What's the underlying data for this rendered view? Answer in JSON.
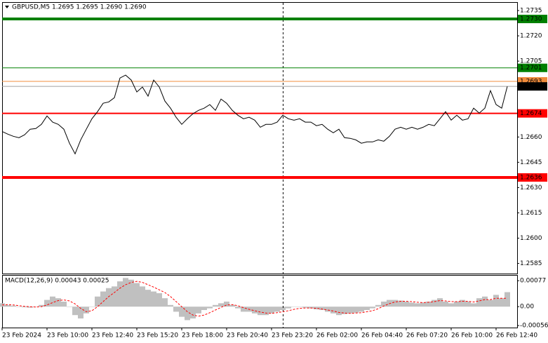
{
  "chart_data": [
    {
      "type": "line",
      "title": "GBPUSD,M5  1.2695 1.2695 1.2690 1.2690",
      "categories": [
        "23 Feb 2024",
        null,
        null,
        null,
        null,
        null,
        null,
        null,
        "23 Feb 10:00",
        null,
        null,
        null,
        null,
        null,
        null,
        null,
        "23 Feb 12:40",
        null,
        null,
        null,
        null,
        null,
        null,
        null,
        "23 Feb 15:20",
        null,
        null,
        null,
        null,
        null,
        null,
        null,
        "23 Feb 18:00",
        null,
        null,
        null,
        null,
        null,
        null,
        null,
        "23 Feb 20:40",
        null,
        null,
        null,
        null,
        null,
        null,
        null,
        "23 Feb 23:20",
        null,
        null,
        null,
        null,
        null,
        null,
        null,
        "26 Feb 02:00",
        null,
        null,
        null,
        null,
        null,
        null,
        null,
        "26 Feb 04:40",
        null,
        null,
        null,
        null,
        null,
        null,
        null,
        "26 Feb 07:20",
        null,
        null,
        null,
        null,
        null,
        null,
        null,
        "26 Feb 10:00",
        null,
        null,
        null,
        null,
        null,
        null,
        null,
        "26 Feb 12:40",
        null,
        null
      ],
      "series": [
        {
          "color": "#000000",
          "values": [
            1.26633,
            1.26617,
            1.26604,
            1.26596,
            1.26613,
            1.26646,
            1.2665,
            1.26675,
            1.26725,
            1.26688,
            1.26675,
            1.26646,
            1.26563,
            1.265,
            1.26583,
            1.26646,
            1.26708,
            1.2675,
            1.268,
            1.26808,
            1.26833,
            1.2695,
            1.26967,
            1.26938,
            1.26867,
            1.26896,
            1.26842,
            1.26938,
            1.26896,
            1.26813,
            1.26771,
            1.26717,
            1.26675,
            1.26708,
            1.26738,
            1.26758,
            1.26771,
            1.26792,
            1.26758,
            1.26825,
            1.268,
            1.26758,
            1.26729,
            1.26708,
            1.26717,
            1.267,
            1.26658,
            1.26675,
            1.26675,
            1.26688,
            1.26729,
            1.26708,
            1.267,
            1.26708,
            1.26688,
            1.26688,
            1.26667,
            1.26675,
            1.26646,
            1.26625,
            1.26646,
            1.26596,
            1.26592,
            1.26583,
            1.26563,
            1.26571,
            1.26571,
            1.26583,
            1.26575,
            1.26604,
            1.26646,
            1.26658,
            1.26646,
            1.26658,
            1.26646,
            1.26658,
            1.26675,
            1.26667,
            1.26708,
            1.2675,
            1.267,
            1.26729,
            1.267,
            1.26708,
            1.26771,
            1.26742,
            1.26771,
            1.26875,
            1.26792,
            1.26771,
            1.269
          ]
        }
      ],
      "levels": [
        {
          "value": 1.273,
          "label": "1.2730",
          "color": "#008000"
        },
        {
          "value": 1.2701,
          "label": "1.2701",
          "color": "#008000"
        },
        {
          "value": 1.2693,
          "label": "1.2693",
          "color": "#f08c3c"
        },
        {
          "value": 1.269,
          "label": "1.2690",
          "color": "#000000"
        },
        {
          "value": 1.2674,
          "label": "1.2674",
          "color": "#ff0000"
        },
        {
          "value": 1.2636,
          "label": "1.2636",
          "color": "#ff0000"
        }
      ],
      "ylim": [
        1.2579,
        1.274
      ],
      "yticks": [
        1.2735,
        {
          "value": 1.272,
          "label": "1.2720"
        },
        1.2705,
        {
          "value": 1.266,
          "label": "1.2660"
        },
        1.2645,
        {
          "value": 1.263,
          "label": "1.2630"
        },
        1.2615,
        {
          "value": 1.26,
          "label": "1.2600"
        },
        1.2585
      ],
      "grid": false
    },
    {
      "type": "macd",
      "title": "MACD(12,26,9) 0.00043 0.00025",
      "histogram": {
        "color": "#c0c0c0",
        "values": [
          0.0001,
          5e-05,
          3e-05,
          0,
          -2e-05,
          -3e-05,
          0,
          5e-05,
          0.0002,
          0.0003,
          0.00025,
          0.00015,
          0,
          -0.00025,
          -0.00035,
          -0.0002,
          0,
          0.0003,
          0.00045,
          0.00055,
          0.0006,
          0.00075,
          0.00085,
          0.0008,
          0.0007,
          0.0006,
          0.0005,
          0.00045,
          0.0004,
          0.00025,
          5e-05,
          -0.00015,
          -0.0003,
          -0.0004,
          -0.00035,
          -0.0002,
          -0.0001,
          -5e-05,
          5e-05,
          0.0001,
          0.00015,
          5e-05,
          -5e-05,
          -0.00015,
          -0.00015,
          -0.0002,
          -0.00025,
          -0.00025,
          -0.0002,
          -0.00015,
          -0.0001,
          -5e-05,
          0,
          0,
          -3e-05,
          -5e-05,
          -8e-05,
          -0.0001,
          -0.00015,
          -0.0002,
          -0.00025,
          -0.00022,
          -0.0002,
          -0.00018,
          -0.00015,
          -0.0001,
          -5e-05,
          5e-05,
          0.00015,
          0.0002,
          0.0002,
          0.00018,
          0.00015,
          0.00012,
          0.0001,
          0.00012,
          0.00015,
          0.0002,
          0.00025,
          0.00015,
          0.0001,
          0.00015,
          0.0002,
          0.00015,
          0.0001,
          0.00025,
          0.0003,
          0.0002,
          0.00035,
          0.00025,
          0.00043
        ]
      },
      "signal": {
        "color": "#ff0000",
        "values": [
          5e-05,
          6e-05,
          5e-05,
          3e-05,
          1e-05,
          0,
          -1e-05,
          0,
          5e-05,
          0.00012,
          0.00018,
          0.0002,
          0.00017,
          8e-05,
          -5e-05,
          -0.00015,
          -0.00012,
          0,
          0.00015,
          0.0003,
          0.00042,
          0.00055,
          0.00065,
          0.00072,
          0.00075,
          0.00072,
          0.00065,
          0.00058,
          0.0005,
          0.00042,
          0.0003,
          0.00015,
          0,
          -0.00015,
          -0.00025,
          -0.00028,
          -0.00025,
          -0.00018,
          -0.0001,
          -2e-05,
          5e-05,
          6e-05,
          3e-05,
          -3e-05,
          -8e-05,
          -0.00012,
          -0.00016,
          -0.00019,
          -0.0002,
          -0.00018,
          -0.00015,
          -0.00012,
          -8e-05,
          -5e-05,
          -4e-05,
          -4e-05,
          -5e-05,
          -7e-05,
          -0.0001,
          -0.00013,
          -0.00017,
          -0.00019,
          -0.0002,
          -0.00019,
          -0.00018,
          -0.00015,
          -0.00012,
          -6e-05,
          2e-05,
          9e-05,
          0.00014,
          0.00016,
          0.00016,
          0.00015,
          0.00013,
          0.00012,
          0.00013,
          0.00015,
          0.00018,
          0.00017,
          0.00015,
          0.00015,
          0.00016,
          0.00016,
          0.00014,
          0.00017,
          0.00021,
          0.00021,
          0.00025,
          0.00025,
          0.00025
        ]
      },
      "ylim": [
        -0.00062,
        0.00094
      ],
      "yticks": [
        0.00077,
        {
          "value": 0,
          "label": "0.00"
        },
        -0.00056
      ]
    }
  ]
}
